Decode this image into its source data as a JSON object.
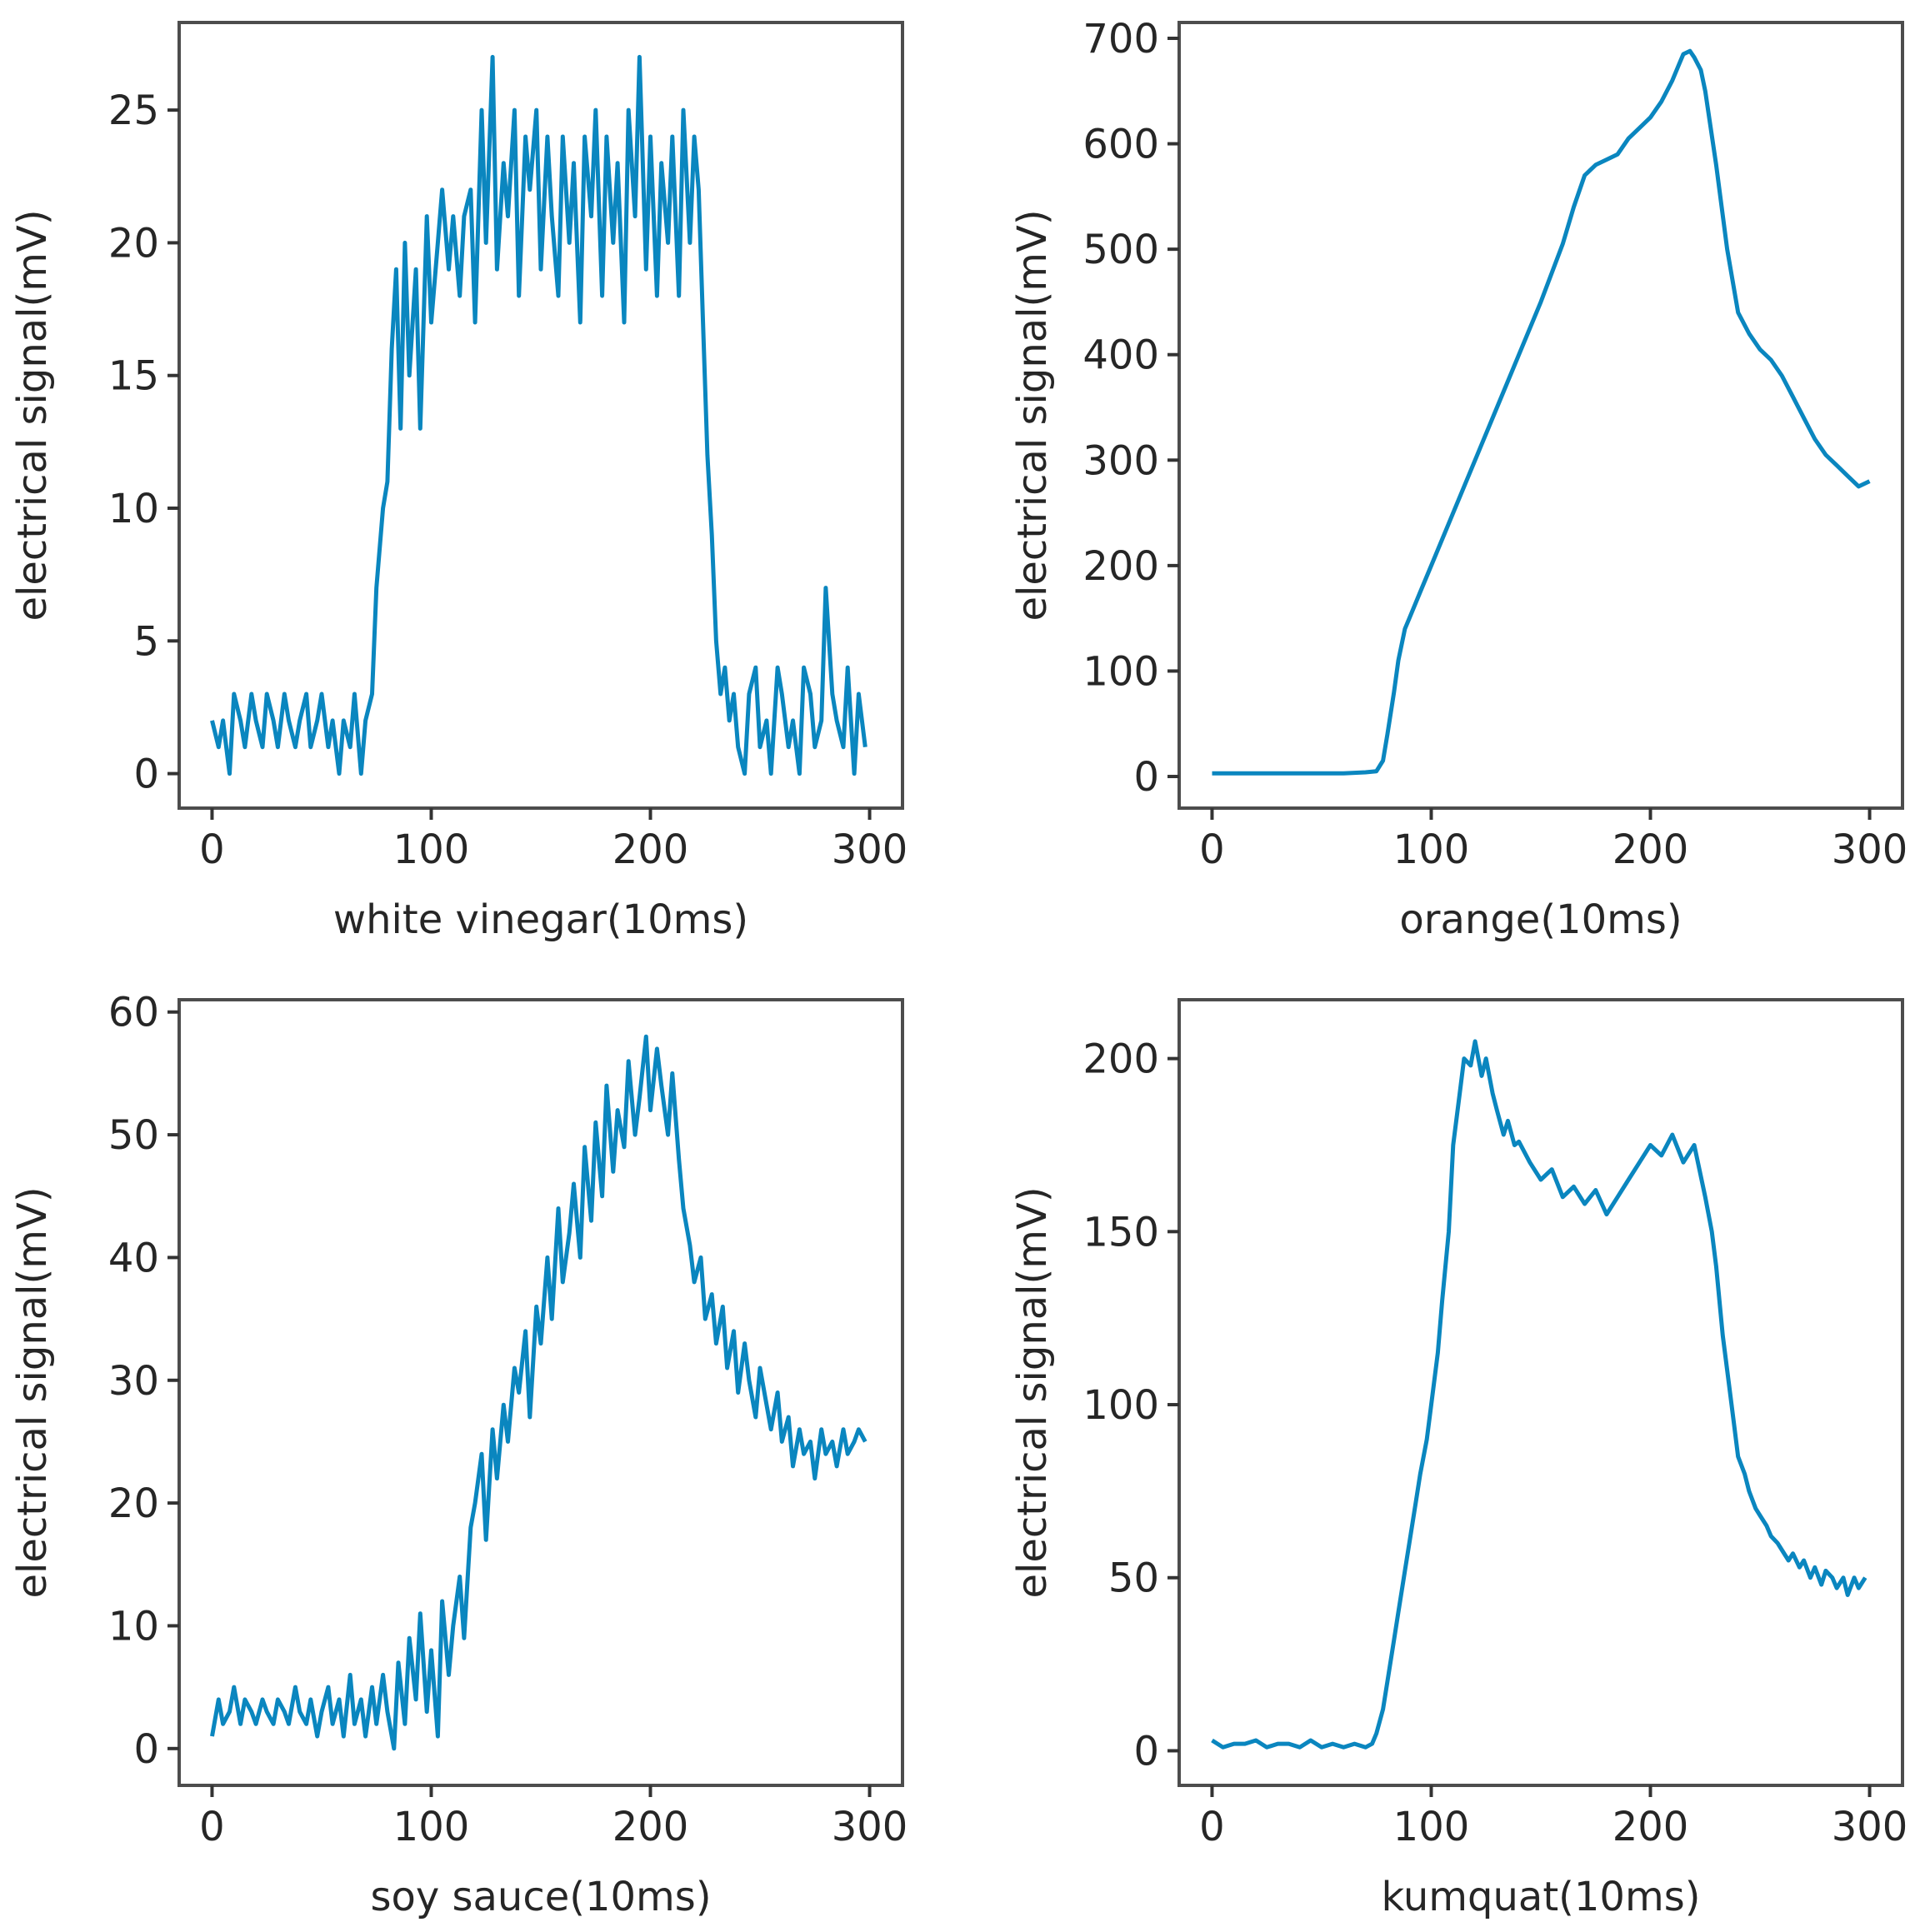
{
  "figure": {
    "line_color": "#0a86bf",
    "background": "#ffffff"
  },
  "chart_data": [
    {
      "type": "line",
      "panel": "top-left",
      "xlabel": "white vinegar(10ms)",
      "ylabel": "electrical signal(mV)",
      "xlim": [
        -15,
        315
      ],
      "ylim": [
        -1.3,
        28.3
      ],
      "xticks": [
        0,
        100,
        200,
        300
      ],
      "yticks": [
        0,
        5,
        10,
        15,
        20,
        25
      ],
      "series": [
        {
          "name": "white vinegar",
          "x": [
            0,
            3,
            5,
            8,
            10,
            13,
            15,
            18,
            20,
            23,
            25,
            28,
            30,
            33,
            35,
            38,
            40,
            43,
            45,
            48,
            50,
            53,
            55,
            58,
            60,
            63,
            65,
            68,
            70,
            73,
            75,
            78,
            80,
            82,
            84,
            86,
            88,
            90,
            93,
            95,
            98,
            100,
            103,
            105,
            108,
            110,
            113,
            115,
            118,
            120,
            123,
            125,
            128,
            130,
            133,
            135,
            138,
            140,
            143,
            145,
            148,
            150,
            153,
            155,
            158,
            160,
            163,
            165,
            168,
            170,
            173,
            175,
            178,
            180,
            183,
            185,
            188,
            190,
            193,
            195,
            198,
            200,
            203,
            205,
            208,
            210,
            213,
            215,
            218,
            220,
            222,
            224,
            226,
            228,
            230,
            232,
            234,
            236,
            238,
            240,
            243,
            245,
            248,
            250,
            253,
            255,
            258,
            260,
            263,
            265,
            268,
            270,
            273,
            275,
            278,
            280,
            283,
            285,
            288,
            290,
            293,
            295,
            298
          ],
          "values": [
            2,
            1,
            2,
            0,
            3,
            2,
            1,
            3,
            2,
            1,
            3,
            2,
            1,
            3,
            2,
            1,
            2,
            3,
            1,
            2,
            3,
            1,
            2,
            0,
            2,
            1,
            3,
            0,
            2,
            3,
            7,
            10,
            11,
            16,
            19,
            13,
            20,
            15,
            19,
            13,
            21,
            17,
            20,
            22,
            19,
            21,
            18,
            21,
            22,
            17,
            25,
            20,
            27,
            19,
            23,
            21,
            25,
            18,
            24,
            22,
            25,
            19,
            24,
            21,
            18,
            24,
            20,
            23,
            17,
            24,
            21,
            25,
            18,
            24,
            20,
            23,
            17,
            25,
            21,
            27,
            19,
            24,
            18,
            23,
            20,
            24,
            18,
            25,
            20,
            24,
            22,
            17,
            12,
            9,
            5,
            3,
            4,
            2,
            3,
            1,
            0,
            3,
            4,
            1,
            2,
            0,
            4,
            3,
            1,
            2,
            0,
            4,
            3,
            1,
            2,
            7,
            3,
            2,
            1,
            4,
            0,
            3,
            1
          ]
        }
      ]
    },
    {
      "type": "line",
      "panel": "top-right",
      "xlabel": "orange(10ms)",
      "ylabel": "electrical signal(mV)",
      "xlim": [
        -15,
        315
      ],
      "ylim": [
        -30,
        715
      ],
      "xticks": [
        0,
        100,
        200,
        300
      ],
      "yticks": [
        0,
        100,
        200,
        300,
        400,
        500,
        600,
        700
      ],
      "series": [
        {
          "name": "orange",
          "x": [
            0,
            10,
            20,
            30,
            40,
            50,
            60,
            70,
            75,
            78,
            80,
            83,
            85,
            88,
            90,
            95,
            100,
            110,
            120,
            130,
            140,
            150,
            160,
            165,
            170,
            175,
            180,
            185,
            190,
            195,
            200,
            205,
            210,
            213,
            215,
            218,
            220,
            223,
            225,
            230,
            235,
            240,
            245,
            250,
            255,
            260,
            265,
            270,
            275,
            280,
            285,
            290,
            295,
            300
          ],
          "values": [
            3,
            3,
            3,
            3,
            3,
            3,
            3,
            4,
            5,
            15,
            40,
            80,
            110,
            140,
            150,
            175,
            200,
            250,
            300,
            350,
            400,
            450,
            505,
            540,
            570,
            580,
            585,
            590,
            605,
            615,
            625,
            640,
            660,
            675,
            685,
            688,
            682,
            670,
            650,
            580,
            500,
            440,
            420,
            405,
            395,
            380,
            360,
            340,
            320,
            305,
            295,
            285,
            275,
            280
          ]
        }
      ]
    },
    {
      "type": "line",
      "panel": "bottom-left",
      "xlabel": "soy sauce(10ms)",
      "ylabel": "electrical signal(mV)",
      "xlim": [
        -15,
        315
      ],
      "ylim": [
        -3,
        61
      ],
      "xticks": [
        0,
        100,
        200,
        300
      ],
      "yticks": [
        0,
        10,
        20,
        30,
        40,
        50,
        60
      ],
      "series": [
        {
          "name": "soy sauce",
          "x": [
            0,
            3,
            5,
            8,
            10,
            13,
            15,
            18,
            20,
            23,
            25,
            28,
            30,
            33,
            35,
            38,
            40,
            43,
            45,
            48,
            50,
            53,
            55,
            58,
            60,
            63,
            65,
            68,
            70,
            73,
            75,
            78,
            80,
            83,
            85,
            88,
            90,
            93,
            95,
            98,
            100,
            103,
            105,
            108,
            110,
            113,
            115,
            118,
            120,
            123,
            125,
            128,
            130,
            133,
            135,
            138,
            140,
            143,
            145,
            148,
            150,
            153,
            155,
            158,
            160,
            163,
            165,
            168,
            170,
            173,
            175,
            178,
            180,
            183,
            185,
            188,
            190,
            193,
            195,
            198,
            200,
            203,
            205,
            208,
            210,
            213,
            215,
            218,
            220,
            223,
            225,
            228,
            230,
            233,
            235,
            238,
            240,
            243,
            245,
            248,
            250,
            253,
            255,
            258,
            260,
            263,
            265,
            268,
            270,
            273,
            275,
            278,
            280,
            283,
            285,
            288,
            290,
            293,
            295,
            298
          ],
          "values": [
            1,
            4,
            2,
            3,
            5,
            2,
            4,
            3,
            2,
            4,
            3,
            2,
            4,
            3,
            2,
            5,
            3,
            2,
            4,
            1,
            3,
            5,
            2,
            4,
            1,
            6,
            2,
            4,
            1,
            5,
            2,
            6,
            3,
            0,
            7,
            2,
            9,
            4,
            11,
            3,
            8,
            1,
            12,
            6,
            10,
            14,
            9,
            18,
            20,
            24,
            17,
            26,
            22,
            28,
            25,
            31,
            29,
            34,
            27,
            36,
            33,
            40,
            35,
            44,
            38,
            42,
            46,
            40,
            49,
            43,
            51,
            45,
            54,
            47,
            52,
            49,
            56,
            50,
            53,
            58,
            52,
            57,
            54,
            50,
            55,
            48,
            44,
            41,
            38,
            40,
            35,
            37,
            33,
            36,
            31,
            34,
            29,
            33,
            30,
            27,
            31,
            28,
            26,
            29,
            25,
            27,
            23,
            26,
            24,
            25,
            22,
            26,
            24,
            25,
            23,
            26,
            24,
            25,
            26,
            25
          ]
        }
      ]
    },
    {
      "type": "line",
      "panel": "bottom-right",
      "xlabel": "kumquat(10ms)",
      "ylabel": "electrical signal(mV)",
      "xlim": [
        -15,
        315
      ],
      "ylim": [
        -10,
        217
      ],
      "xticks": [
        0,
        100,
        200,
        300
      ],
      "yticks": [
        0,
        50,
        100,
        150,
        200
      ],
      "series": [
        {
          "name": "kumquat",
          "x": [
            0,
            5,
            10,
            15,
            20,
            25,
            30,
            35,
            40,
            45,
            50,
            55,
            60,
            65,
            70,
            73,
            75,
            78,
            80,
            83,
            85,
            88,
            90,
            93,
            95,
            98,
            100,
            103,
            105,
            108,
            110,
            113,
            115,
            118,
            120,
            123,
            125,
            128,
            130,
            133,
            135,
            138,
            140,
            145,
            150,
            155,
            160,
            165,
            170,
            175,
            180,
            185,
            190,
            195,
            200,
            205,
            210,
            215,
            220,
            225,
            228,
            230,
            233,
            235,
            238,
            240,
            243,
            245,
            248,
            250,
            253,
            255,
            258,
            260,
            263,
            265,
            268,
            270,
            273,
            275,
            278,
            280,
            283,
            285,
            288,
            290,
            293,
            295,
            298
          ],
          "values": [
            3,
            1,
            2,
            2,
            3,
            1,
            2,
            2,
            1,
            3,
            1,
            2,
            1,
            2,
            1,
            2,
            5,
            12,
            20,
            32,
            40,
            52,
            60,
            72,
            80,
            90,
            100,
            115,
            130,
            150,
            175,
            190,
            200,
            198,
            205,
            195,
            200,
            190,
            185,
            178,
            182,
            175,
            176,
            170,
            165,
            168,
            160,
            163,
            158,
            162,
            155,
            160,
            165,
            170,
            175,
            172,
            178,
            170,
            175,
            160,
            150,
            140,
            120,
            110,
            95,
            85,
            80,
            75,
            70,
            68,
            65,
            62,
            60,
            58,
            55,
            57,
            53,
            55,
            50,
            53,
            48,
            52,
            50,
            47,
            50,
            45,
            50,
            47,
            50
          ]
        }
      ]
    }
  ]
}
